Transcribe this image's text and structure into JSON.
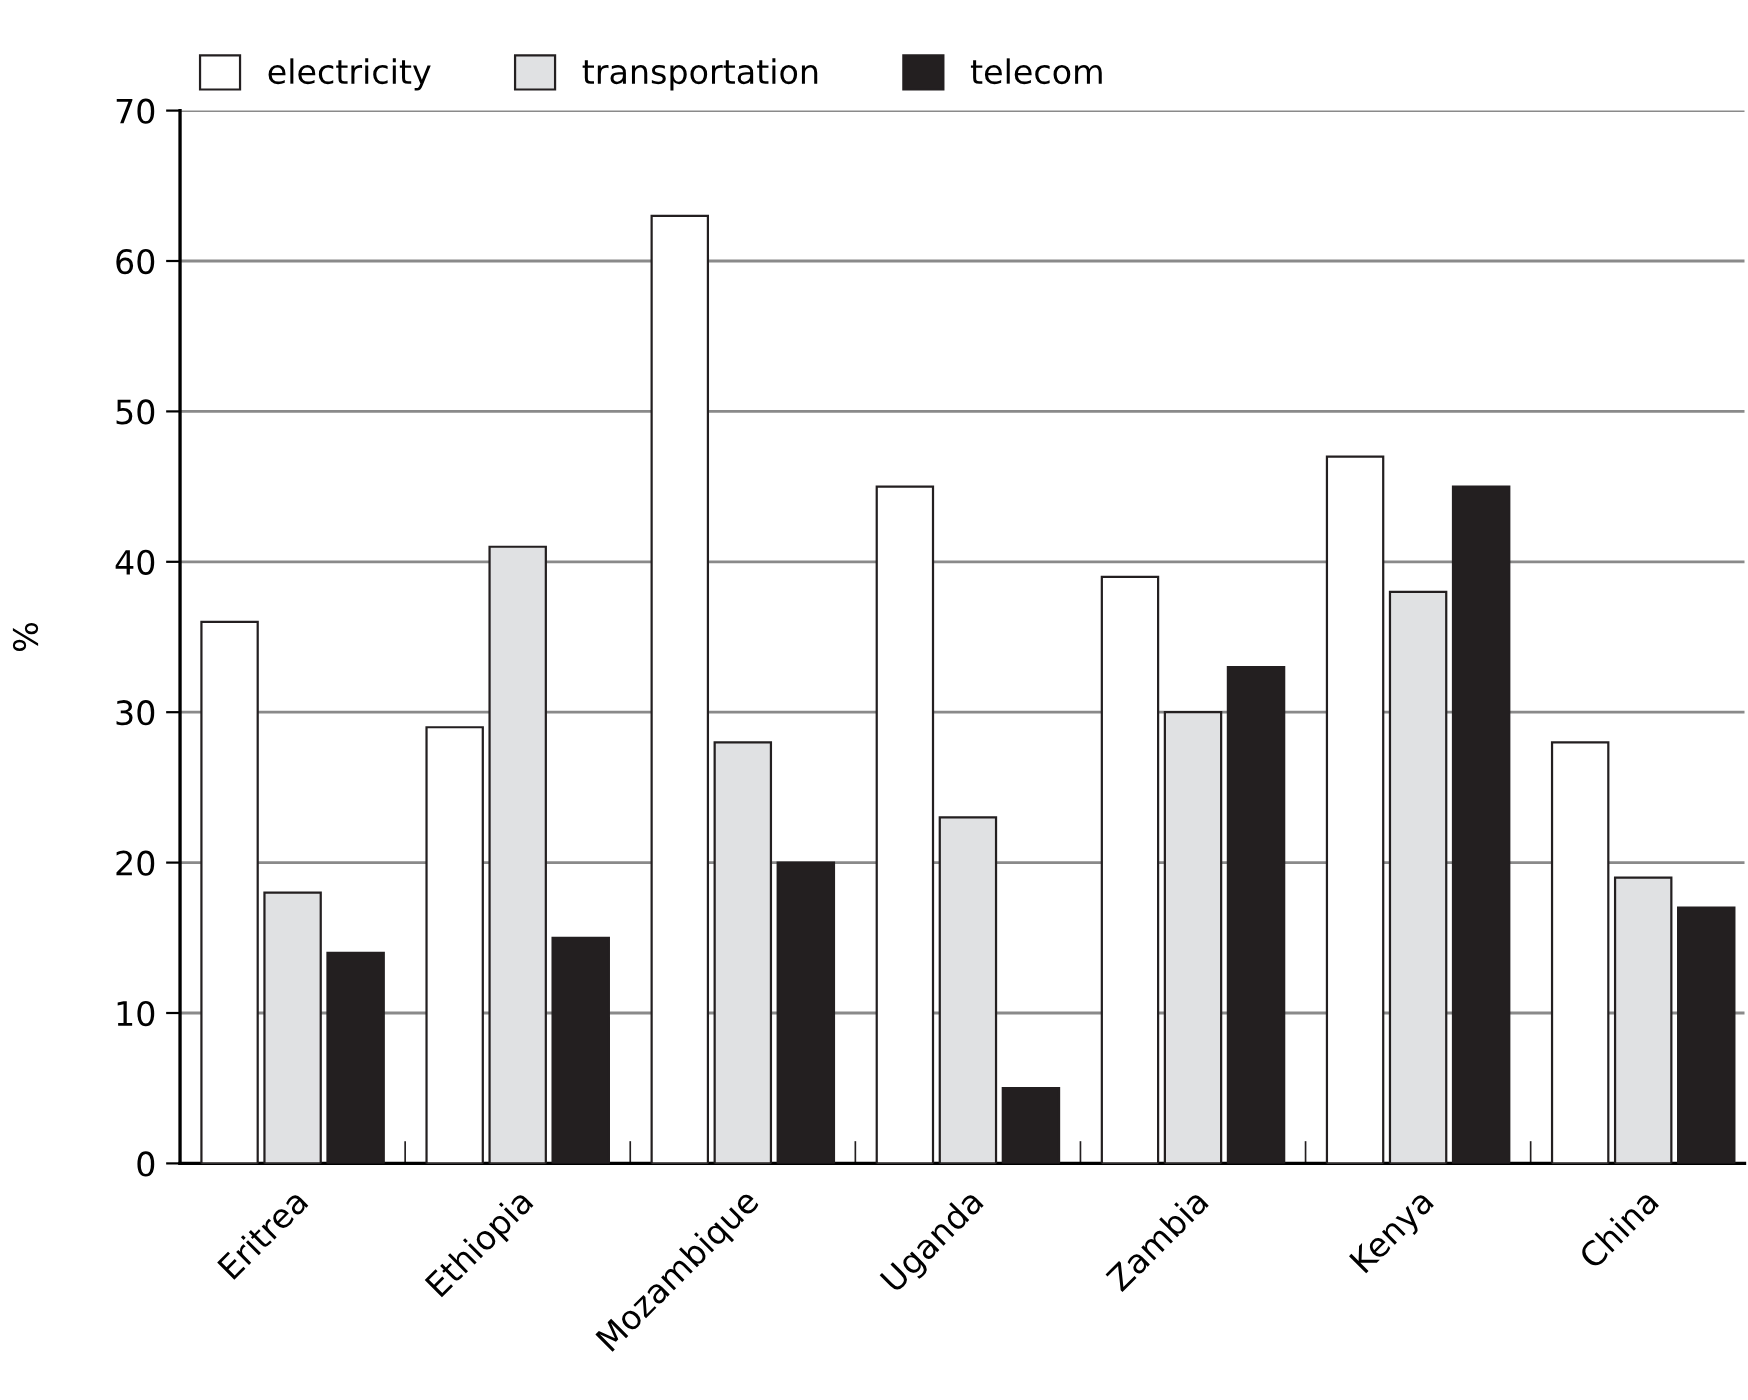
{
  "chart_data": {
    "type": "bar",
    "ylabel": "%",
    "categories": [
      "Eritrea",
      "Ethiopia",
      "Mozambique",
      "Uganda",
      "Zambia",
      "Kenya",
      "China"
    ],
    "series": [
      {
        "name": "electricity",
        "color": "#ffffff",
        "values": [
          36,
          29,
          63,
          45,
          39,
          47,
          28
        ]
      },
      {
        "name": "transportation",
        "color": "#e0e1e3",
        "values": [
          18,
          41,
          28,
          23,
          30,
          38,
          19
        ]
      },
      {
        "name": "telecom",
        "color": "#231f20",
        "values": [
          14,
          15,
          20,
          5,
          33,
          45,
          17
        ]
      }
    ],
    "ylim": [
      0,
      70
    ],
    "yticks": [
      0,
      10,
      20,
      30,
      40,
      50,
      60,
      70
    ],
    "grid": "y",
    "legend": "top left"
  }
}
